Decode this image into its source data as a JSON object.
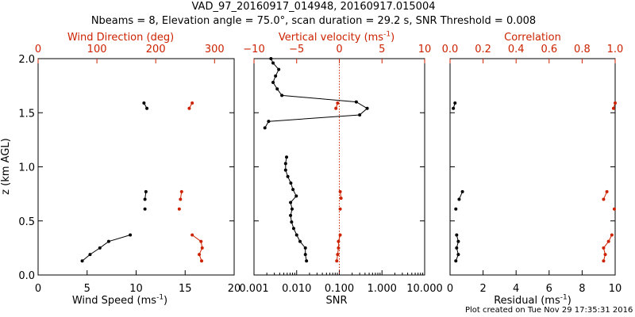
{
  "header": {
    "title_line1": "VAD_97_20160917_014948, 20160917.015004",
    "title_line2": "Nbeams = 8, Elevation angle = 75.0°, scan duration = 29.2 s, SNR Threshold = 0.008"
  },
  "footer": {
    "text": "Plot created on Tue Nov 29 17:35:31 2016"
  },
  "colors": {
    "primary": "#000000",
    "secondary": "#cc2200"
  },
  "chart_data": [
    {
      "type": "scatter",
      "panel": "wind",
      "ylabel": "z (km AGL)",
      "ylim": [
        0.0,
        2.0
      ],
      "yticks": [
        "0.0",
        "0.5",
        "1.0",
        "1.5",
        "2.0"
      ],
      "bottom_axis": {
        "label": "Wind Speed (ms",
        "label_sup": "-1",
        "label_end": ")",
        "xlim": [
          0,
          20
        ],
        "ticks": [
          "0",
          "5",
          "10",
          "15",
          "20"
        ]
      },
      "top_axis": {
        "label": "Wind Direction (deg)",
        "xlim": [
          0,
          333.33
        ],
        "ticks": [
          "0",
          "100",
          "200",
          "300"
        ]
      },
      "series": [
        {
          "axis": "bottom",
          "segments": [
            [
              [
                4.5,
                0.13
              ],
              [
                5.3,
                0.19
              ],
              [
                6.3,
                0.25
              ],
              [
                7.2,
                0.31
              ],
              [
                9.4,
                0.37
              ]
            ],
            [
              [
                10.9,
                0.7
              ],
              [
                11.0,
                0.77
              ]
            ],
            [
              [
                10.8,
                1.59
              ],
              [
                11.1,
                1.54
              ]
            ]
          ],
          "isolated": [
            [
              10.9,
              0.61
            ]
          ]
        },
        {
          "axis": "top",
          "segments": [
            [
              [
                278,
                0.13
              ],
              [
                274,
                0.19
              ],
              [
                279,
                0.25
              ],
              [
                277,
                0.31
              ],
              [
                262,
                0.37
              ]
            ],
            [
              [
                242,
                0.7
              ],
              [
                244,
                0.77
              ]
            ],
            [
              [
                262,
                1.59
              ],
              [
                257,
                1.54
              ]
            ]
          ],
          "isolated": [
            [
              240,
              0.61
            ]
          ]
        }
      ]
    },
    {
      "type": "line",
      "panel": "snr",
      "bottom_axis": {
        "label": "SNR",
        "scale": "log",
        "xlim": [
          0.001,
          10.0
        ],
        "ticks": [
          "0.001",
          "0.010",
          "0.100",
          "1.000",
          "10.000"
        ]
      },
      "top_axis": {
        "label": "Vertical velocity (ms",
        "label_sup": "-1",
        "label_end": ")",
        "xlim": [
          -10,
          10
        ],
        "ticks": [
          "−10",
          "−5",
          "0",
          "5",
          "10"
        ]
      },
      "reference_line": {
        "axis": "top",
        "x": 0
      },
      "series": [
        {
          "axis": "bottom",
          "segments": [
            [
              [
                0.017,
                0.13
              ],
              [
                0.016,
                0.19
              ],
              [
                0.016,
                0.25
              ],
              [
                0.012,
                0.31
              ],
              [
                0.01,
                0.37
              ],
              [
                0.0085,
                0.43
              ],
              [
                0.0076,
                0.49
              ],
              [
                0.0072,
                0.55
              ],
              [
                0.0078,
                0.61
              ],
              [
                0.0072,
                0.67
              ],
              [
                0.0098,
                0.73
              ],
              [
                0.0082,
                0.79
              ],
              [
                0.0073,
                0.85
              ],
              [
                0.0062,
                0.91
              ],
              [
                0.0055,
                0.97
              ],
              [
                0.0055,
                1.03
              ],
              [
                0.0058,
                1.09
              ]
            ],
            [
              [
                0.0018,
                1.36
              ],
              [
                0.0022,
                1.42
              ],
              [
                0.3,
                1.48
              ],
              [
                0.45,
                1.54
              ],
              [
                0.25,
                1.6
              ],
              [
                0.0045,
                1.66
              ],
              [
                0.0035,
                1.72
              ],
              [
                0.0028,
                1.78
              ],
              [
                0.0032,
                1.84
              ],
              [
                0.0038,
                1.9
              ],
              [
                0.0028,
                1.96
              ],
              [
                0.0025,
                2.0
              ]
            ]
          ],
          "isolated": []
        },
        {
          "axis": "top",
          "segments": [
            [
              [
                -0.3,
                0.13
              ],
              [
                -0.2,
                0.19
              ],
              [
                -0.1,
                0.25
              ],
              [
                -0.1,
                0.31
              ],
              [
                0.1,
                0.37
              ]
            ],
            [
              [
                0.2,
                0.71
              ],
              [
                0.1,
                0.77
              ]
            ],
            [
              [
                -0.4,
                1.54
              ],
              [
                -0.2,
                1.59
              ]
            ]
          ],
          "isolated": [
            [
              0.1,
              0.61
            ]
          ]
        }
      ]
    },
    {
      "type": "scatter",
      "panel": "quality",
      "bottom_axis": {
        "label": "Residual (ms",
        "label_sup": "-1",
        "label_end": ")",
        "xlim": [
          0,
          10
        ],
        "ticks": [
          "0",
          "2",
          "4",
          "6",
          "8",
          "10"
        ]
      },
      "top_axis": {
        "label": "Correlation",
        "xlim": [
          0.0,
          1.0
        ],
        "ticks": [
          "0.0",
          "0.2",
          "0.4",
          "0.6",
          "0.8",
          "1.0"
        ]
      },
      "series": [
        {
          "axis": "bottom",
          "segments": [
            [
              [
                0.35,
                0.13
              ],
              [
                0.5,
                0.19
              ],
              [
                0.4,
                0.25
              ],
              [
                0.5,
                0.31
              ],
              [
                0.4,
                0.37
              ]
            ],
            [
              [
                0.55,
                0.7
              ],
              [
                0.75,
                0.77
              ]
            ],
            [
              [
                0.3,
                1.59
              ],
              [
                0.2,
                1.54
              ]
            ]
          ],
          "isolated": [
            [
              0.35,
              0.61
            ]
          ]
        },
        {
          "axis": "top",
          "segments": [
            [
              [
                0.93,
                0.13
              ],
              [
                0.94,
                0.19
              ],
              [
                0.93,
                0.25
              ],
              [
                0.96,
                0.31
              ],
              [
                0.98,
                0.37
              ]
            ],
            [
              [
                0.93,
                0.7
              ],
              [
                0.95,
                0.77
              ]
            ],
            [
              [
                1.0,
                1.59
              ],
              [
                0.99,
                1.54
              ]
            ]
          ],
          "isolated": [
            [
              0.995,
              0.61
            ]
          ]
        }
      ]
    }
  ]
}
